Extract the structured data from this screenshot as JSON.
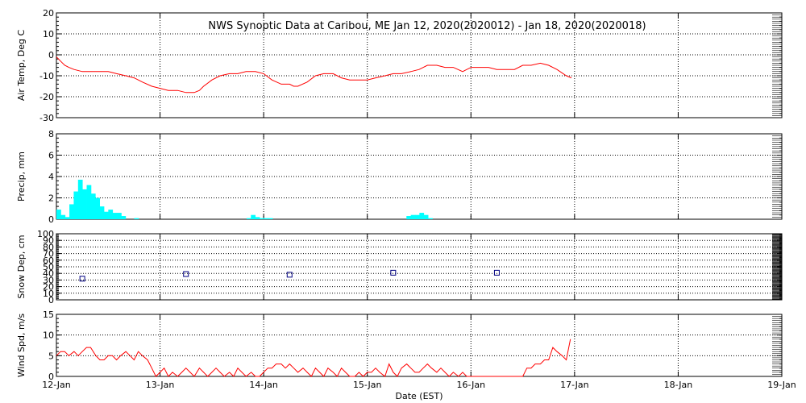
{
  "chart_data": {
    "type": "line",
    "title": "NWS Synoptic Data at Caribou, ME   Jan 12, 2020(2020012) - Jan 18, 2020(2020018)",
    "xlabel": "Date (EST)",
    "x_ticks": [
      "12-Jan",
      "13-Jan",
      "14-Jan",
      "15-Jan",
      "16-Jan",
      "17-Jan",
      "18-Jan",
      "19-Jan"
    ],
    "xlim_days": [
      12,
      19
    ],
    "grid": true,
    "colors": {
      "line": "#ff0000",
      "bar": "#00ffff",
      "marker": "#000080"
    },
    "panels": [
      {
        "type": "line",
        "ylabel": "Air Temp, Deg C",
        "ylim": [
          -30,
          20
        ],
        "yticks": [
          -30,
          -20,
          -10,
          0,
          10,
          20
        ],
        "x": [
          12.0,
          12.04,
          12.08,
          12.12,
          12.17,
          12.25,
          12.33,
          12.42,
          12.5,
          12.58,
          12.67,
          12.75,
          12.83,
          12.92,
          13.0,
          13.08,
          13.17,
          13.25,
          13.33,
          13.38,
          13.42,
          13.5,
          13.58,
          13.67,
          13.75,
          13.83,
          13.92,
          14.0,
          14.08,
          14.17,
          14.25,
          14.29,
          14.33,
          14.42,
          14.5,
          14.58,
          14.67,
          14.75,
          14.83,
          14.92,
          15.0,
          15.08,
          15.17,
          15.25,
          15.33,
          15.42,
          15.5,
          15.58,
          15.67,
          15.75,
          15.83,
          15.92,
          16.0,
          16.08,
          16.17,
          16.25,
          16.33,
          16.42,
          16.5,
          16.58,
          16.67,
          16.75,
          16.83,
          16.92,
          16.97
        ],
        "values": [
          -1,
          -3,
          -5,
          -6,
          -7,
          -8,
          -8,
          -8,
          -8,
          -9,
          -10,
          -11,
          -13,
          -15,
          -16,
          -17,
          -17,
          -18,
          -18,
          -17,
          -15,
          -12,
          -10,
          -9,
          -9,
          -8,
          -8,
          -9,
          -12,
          -14,
          -14,
          -15,
          -15,
          -13,
          -10,
          -9,
          -9,
          -11,
          -12,
          -12,
          -12,
          -11,
          -10,
          -9,
          -9,
          -8,
          -7,
          -5,
          -5,
          -6,
          -6,
          -8,
          -6,
          -6,
          -6,
          -7,
          -7,
          -7,
          -5,
          -5,
          -4,
          -5,
          -7,
          -10,
          -11
        ]
      },
      {
        "type": "bar",
        "ylabel": "Precip, mm",
        "ylim": [
          0,
          8
        ],
        "yticks": [
          0,
          2,
          4,
          6,
          8
        ],
        "x_start": 12.0,
        "bin_days": 0.0417,
        "values": [
          0.9,
          0.4,
          0.2,
          1.4,
          2.6,
          3.7,
          2.8,
          3.2,
          2.4,
          2.0,
          1.2,
          0.7,
          0.9,
          0.6,
          0.6,
          0.3,
          0,
          0,
          0.1,
          0,
          0,
          0,
          0,
          0,
          0,
          0,
          0,
          0,
          0,
          0,
          0,
          0,
          0,
          0,
          0,
          0,
          0,
          0,
          0,
          0,
          0,
          0,
          0,
          0,
          0.1,
          0.4,
          0.2,
          0.1,
          0.1,
          0.1,
          0,
          0,
          0,
          0,
          0,
          0,
          0,
          0,
          0,
          0,
          0,
          0,
          0,
          0,
          0,
          0,
          0,
          0,
          0,
          0,
          0,
          0,
          0,
          0,
          0,
          0,
          0,
          0,
          0,
          0,
          0,
          0.3,
          0.4,
          0.4,
          0.6,
          0.4,
          0.1
        ]
      },
      {
        "type": "scatter",
        "ylabel": "Snow Dep, cm",
        "ylim": [
          0,
          100
        ],
        "yticks": [
          0,
          10,
          20,
          30,
          40,
          50,
          60,
          70,
          80,
          90,
          100
        ],
        "x": [
          12.25,
          13.25,
          14.25,
          15.25,
          16.25
        ],
        "values": [
          32,
          39,
          38,
          41,
          41
        ]
      },
      {
        "type": "line",
        "ylabel": "Wind Spd, m/s",
        "ylim": [
          0,
          15
        ],
        "yticks": [
          0,
          5,
          10,
          15
        ],
        "x": [
          12.0,
          12.04,
          12.08,
          12.12,
          12.17,
          12.21,
          12.25,
          12.29,
          12.33,
          12.38,
          12.42,
          12.46,
          12.5,
          12.54,
          12.58,
          12.62,
          12.67,
          12.71,
          12.75,
          12.79,
          12.83,
          12.88,
          12.92,
          12.96,
          13.0,
          13.04,
          13.08,
          13.12,
          13.17,
          13.21,
          13.25,
          13.29,
          13.33,
          13.38,
          13.42,
          13.46,
          13.5,
          13.54,
          13.58,
          13.62,
          13.67,
          13.71,
          13.75,
          13.79,
          13.83,
          13.88,
          13.92,
          13.96,
          14.0,
          14.04,
          14.08,
          14.12,
          14.17,
          14.21,
          14.25,
          14.29,
          14.33,
          14.38,
          14.42,
          14.46,
          14.5,
          14.54,
          14.58,
          14.62,
          14.67,
          14.71,
          14.75,
          14.79,
          14.83,
          14.88,
          14.92,
          14.96,
          15.0,
          15.04,
          15.08,
          15.12,
          15.17,
          15.21,
          15.25,
          15.29,
          15.33,
          15.38,
          15.42,
          15.46,
          15.5,
          15.54,
          15.58,
          15.62,
          15.67,
          15.71,
          15.75,
          15.79,
          15.83,
          15.88,
          15.92,
          15.96,
          16.0,
          16.04,
          16.08,
          16.12,
          16.17,
          16.21,
          16.25,
          16.29,
          16.33,
          16.38,
          16.42,
          16.46,
          16.5,
          16.54,
          16.58,
          16.62,
          16.67,
          16.71,
          16.75,
          16.79,
          16.83,
          16.88,
          16.92,
          16.96
        ],
        "values": [
          5,
          6,
          6,
          5,
          6,
          5,
          6,
          7,
          7,
          5,
          4,
          4,
          5,
          5,
          4,
          5,
          6,
          5,
          4,
          6,
          5,
          4,
          2,
          0,
          1,
          2,
          0,
          1,
          0,
          1,
          2,
          1,
          0,
          2,
          1,
          0,
          1,
          2,
          1,
          0,
          1,
          0,
          2,
          1,
          0,
          1,
          0,
          0,
          1,
          2,
          2,
          3,
          3,
          2,
          3,
          2,
          1,
          2,
          1,
          0,
          2,
          1,
          0,
          2,
          1,
          0,
          2,
          1,
          0,
          0,
          1,
          0,
          1,
          1,
          2,
          1,
          0,
          3,
          1,
          0,
          2,
          3,
          2,
          1,
          1,
          2,
          3,
          2,
          1,
          2,
          1,
          0,
          1,
          0,
          1,
          0,
          0,
          0,
          0,
          0,
          0,
          0,
          0,
          0,
          0,
          0,
          0,
          0,
          0,
          2,
          2,
          3,
          3,
          4,
          4,
          7,
          6,
          5,
          4,
          9
        ]
      }
    ]
  }
}
